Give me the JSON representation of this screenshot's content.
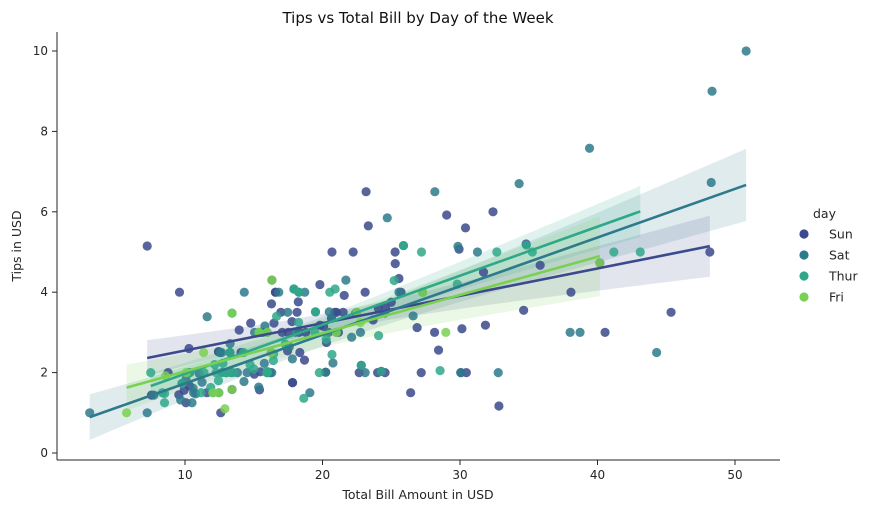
{
  "chart_data": {
    "type": "scatter",
    "title": "Tips vs Total Bill by Day of the Week",
    "xlabel": "Total Bill Amount in USD",
    "ylabel": "Tips in USD",
    "xlim": [
      2,
      53
    ],
    "ylim": [
      -0.2,
      10.5
    ],
    "xticks": [
      10,
      20,
      30,
      40,
      50
    ],
    "yticks": [
      0,
      2,
      4,
      6,
      8,
      10
    ],
    "grid": false,
    "legend": {
      "title": "day",
      "placement": "right"
    },
    "series": [
      {
        "name": "Sun",
        "color": "#3b4a8c",
        "points": [
          [
            7.25,
            5.15
          ],
          [
            8.77,
            2.0
          ],
          [
            9.6,
            4.0
          ],
          [
            10.29,
            2.6
          ],
          [
            10.33,
            1.67
          ],
          [
            14.07,
            2.5
          ],
          [
            14.78,
            3.23
          ],
          [
            15.04,
            1.96
          ],
          [
            15.42,
            1.57
          ],
          [
            16.29,
            3.71
          ],
          [
            16.97,
            3.5
          ],
          [
            17.46,
            2.54
          ],
          [
            17.51,
            3.0
          ],
          [
            17.82,
            1.75
          ],
          [
            18.24,
            3.76
          ],
          [
            18.29,
            3.0
          ],
          [
            18.35,
            2.5
          ],
          [
            19.82,
            3.18
          ],
          [
            20.29,
            2.75
          ],
          [
            20.65,
            3.35
          ],
          [
            20.69,
            5.0
          ],
          [
            21.01,
            3.5
          ],
          [
            21.5,
            3.5
          ],
          [
            21.58,
            3.92
          ],
          [
            22.23,
            5.0
          ],
          [
            22.82,
            2.18
          ],
          [
            23.33,
            5.65
          ],
          [
            23.68,
            3.31
          ],
          [
            24.06,
            3.6
          ],
          [
            24.27,
            2.03
          ],
          [
            24.55,
            2.0
          ],
          [
            24.59,
            3.61
          ],
          [
            25.0,
            3.75
          ],
          [
            25.29,
            4.71
          ],
          [
            25.71,
            4.0
          ],
          [
            26.41,
            1.5
          ],
          [
            26.88,
            3.12
          ],
          [
            28.15,
            3.0
          ],
          [
            29.93,
            5.07
          ],
          [
            30.06,
            2.0
          ],
          [
            30.4,
            5.6
          ],
          [
            31.71,
            4.5
          ],
          [
            32.4,
            6.0
          ],
          [
            34.63,
            3.55
          ],
          [
            34.81,
            5.2
          ],
          [
            38.07,
            4.0
          ],
          [
            40.55,
            3.0
          ],
          [
            45.35,
            3.5
          ],
          [
            48.17,
            5.0
          ],
          [
            9.94,
            1.56
          ],
          [
            13.94,
            3.06
          ],
          [
            12.43,
            2.52
          ],
          [
            16.47,
            3.23
          ],
          [
            17.78,
            3.27
          ],
          [
            20.08,
            3.15
          ],
          [
            16.58,
            4.0
          ],
          [
            17.07,
            3.0
          ],
          [
            13.27,
            2.5
          ],
          [
            16.32,
            4.3
          ],
          [
            23.17,
            6.5
          ],
          [
            20.23,
            2.01
          ],
          [
            16.21,
            2.0
          ],
          [
            19.81,
            4.19
          ],
          [
            28.44,
            2.56
          ],
          [
            15.48,
            2.02
          ],
          [
            16.58,
            4.0
          ],
          [
            7.56,
            1.44
          ],
          [
            10.34,
            2.0
          ],
          [
            25.56,
            4.34
          ],
          [
            35.83,
            4.67
          ],
          [
            29.03,
            5.92
          ],
          [
            27.18,
            2.0
          ],
          [
            22.67,
            2.0
          ],
          [
            17.82,
            1.75
          ],
          [
            18.78,
            3.0
          ],
          [
            13.42,
            1.58
          ],
          [
            16.27,
            2.5
          ],
          [
            10.07,
            1.25
          ],
          [
            12.6,
            1.0
          ],
          [
            32.83,
            1.17
          ],
          [
            30.46,
            2.0
          ],
          [
            18.15,
            3.5
          ],
          [
            23.1,
            4.0
          ],
          [
            11.59,
            1.5
          ],
          [
            12.48,
            2.52
          ],
          [
            21.16,
            3.0
          ],
          [
            20.9,
            3.5
          ],
          [
            30.14,
            3.09
          ],
          [
            31.85,
            3.18
          ],
          [
            18.69,
            2.31
          ],
          [
            9.55,
            1.45
          ],
          [
            16.0,
            2.0
          ],
          [
            25.28,
            5.0
          ],
          [
            15.53,
            3.0
          ],
          [
            13.0,
            2.0
          ],
          [
            22.42,
            3.48
          ],
          [
            24.01,
            2.0
          ],
          [
            40.17,
            4.73
          ]
        ]
      },
      {
        "name": "Sat",
        "color": "#2e7a8c",
        "points": [
          [
            3.07,
            1.0
          ],
          [
            7.25,
            1.0
          ],
          [
            7.74,
            1.44
          ],
          [
            9.78,
            1.73
          ],
          [
            10.07,
            1.83
          ],
          [
            10.63,
            1.5
          ],
          [
            11.24,
            1.76
          ],
          [
            11.61,
            3.39
          ],
          [
            12.46,
            1.5
          ],
          [
            12.54,
            2.5
          ],
          [
            12.66,
            2.5
          ],
          [
            13.28,
            2.72
          ],
          [
            13.81,
            2.0
          ],
          [
            14.29,
            1.78
          ],
          [
            14.31,
            4.0
          ],
          [
            14.52,
            2.0
          ],
          [
            15.36,
            1.64
          ],
          [
            15.69,
            3.0
          ],
          [
            15.98,
            3.0
          ],
          [
            16.31,
            2.0
          ],
          [
            16.82,
            4.0
          ],
          [
            17.47,
            3.5
          ],
          [
            17.81,
            2.34
          ],
          [
            17.92,
            4.08
          ],
          [
            18.04,
            3.0
          ],
          [
            18.28,
            4.0
          ],
          [
            18.71,
            4.0
          ],
          [
            19.08,
            1.5
          ],
          [
            19.49,
            3.51
          ],
          [
            20.23,
            2.01
          ],
          [
            20.49,
            3.51
          ],
          [
            20.76,
            2.24
          ],
          [
            21.7,
            4.3
          ],
          [
            22.12,
            2.88
          ],
          [
            22.76,
            3.0
          ],
          [
            23.1,
            2.0
          ],
          [
            24.71,
            5.85
          ],
          [
            25.89,
            5.16
          ],
          [
            26.59,
            3.41
          ],
          [
            28.17,
            6.5
          ],
          [
            29.85,
            5.14
          ],
          [
            30.06,
            2.0
          ],
          [
            31.27,
            5.0
          ],
          [
            32.78,
            2.0
          ],
          [
            34.3,
            6.7
          ],
          [
            38.01,
            3.0
          ],
          [
            38.73,
            3.0
          ],
          [
            39.42,
            7.58
          ],
          [
            44.3,
            2.5
          ],
          [
            48.27,
            6.73
          ],
          [
            48.33,
            9.0
          ],
          [
            50.81,
            10.0
          ],
          [
            9.68,
            1.32
          ],
          [
            10.59,
            1.61
          ],
          [
            13.37,
            2.0
          ],
          [
            15.81,
            3.16
          ],
          [
            17.59,
            2.64
          ],
          [
            20.45,
            3.0
          ],
          [
            21.01,
            3.0
          ],
          [
            24.52,
            3.48
          ],
          [
            25.56,
            4.0
          ],
          [
            27.28,
            4.0
          ],
          [
            11.02,
            1.98
          ],
          [
            12.74,
            2.01
          ],
          [
            15.06,
            3.0
          ],
          [
            20.65,
            3.35
          ],
          [
            22.49,
            3.5
          ],
          [
            10.51,
            1.25
          ],
          [
            15.77,
            2.23
          ],
          [
            10.77,
            1.47
          ]
        ]
      },
      {
        "name": "Thur",
        "color": "#2fa88a",
        "points": [
          [
            7.51,
            2.0
          ],
          [
            8.35,
            1.5
          ],
          [
            8.51,
            1.25
          ],
          [
            10.34,
            2.0
          ],
          [
            11.38,
            2.0
          ],
          [
            11.87,
            1.63
          ],
          [
            12.03,
            1.5
          ],
          [
            12.16,
            2.2
          ],
          [
            12.43,
            1.8
          ],
          [
            12.69,
            2.0
          ],
          [
            13.0,
            2.0
          ],
          [
            13.42,
            3.48
          ],
          [
            14.26,
            2.5
          ],
          [
            14.73,
            2.2
          ],
          [
            15.01,
            2.09
          ],
          [
            15.95,
            2.0
          ],
          [
            16.0,
            2.0
          ],
          [
            16.45,
            2.47
          ],
          [
            16.66,
            3.4
          ],
          [
            17.29,
            2.71
          ],
          [
            18.26,
            3.25
          ],
          [
            18.64,
            1.36
          ],
          [
            19.44,
            3.0
          ],
          [
            19.77,
            2.0
          ],
          [
            20.27,
            2.83
          ],
          [
            20.53,
            4.0
          ],
          [
            20.92,
            4.08
          ],
          [
            24.08,
            2.92
          ],
          [
            25.21,
            4.29
          ],
          [
            27.2,
            5.0
          ],
          [
            28.55,
            2.05
          ],
          [
            29.8,
            4.2
          ],
          [
            32.68,
            5.0
          ],
          [
            34.83,
            5.17
          ],
          [
            41.19,
            5.0
          ],
          [
            43.11,
            5.0
          ],
          [
            15.98,
            2.03
          ],
          [
            18.28,
            4.0
          ],
          [
            8.52,
            1.48
          ],
          [
            13.03,
            2.0
          ],
          [
            13.51,
            2.0
          ],
          [
            16.43,
            2.3
          ],
          [
            15.38,
            3.0
          ],
          [
            24.27,
            2.03
          ],
          [
            11.17,
            1.5
          ],
          [
            12.26,
            2.0
          ],
          [
            12.76,
            2.23
          ],
          [
            10.33,
            2.0
          ],
          [
            9.78,
            1.73
          ],
          [
            19.49,
            3.51
          ],
          [
            25.89,
            5.16
          ],
          [
            17.92,
            4.08
          ],
          [
            13.27,
            2.5
          ],
          [
            20.69,
            2.45
          ],
          [
            35.26,
            5.0
          ],
          [
            22.82,
            2.18
          ]
        ]
      },
      {
        "name": "Fri",
        "color": "#7ad151",
        "points": [
          [
            5.75,
            1.0
          ],
          [
            8.58,
            1.92
          ],
          [
            10.09,
            2.0
          ],
          [
            11.35,
            2.5
          ],
          [
            12.03,
            1.5
          ],
          [
            12.46,
            1.5
          ],
          [
            12.9,
            1.1
          ],
          [
            13.42,
            3.48
          ],
          [
            13.42,
            1.58
          ],
          [
            15.38,
            3.0
          ],
          [
            15.98,
            3.0
          ],
          [
            16.27,
            2.5
          ],
          [
            16.32,
            4.3
          ],
          [
            21.01,
            3.0
          ],
          [
            22.49,
            3.5
          ],
          [
            22.75,
            3.25
          ],
          [
            27.28,
            4.0
          ],
          [
            28.97,
            3.0
          ],
          [
            40.17,
            4.73
          ]
        ]
      }
    ],
    "regression": [
      {
        "name": "Sun",
        "x_range": [
          7.25,
          48.17
        ],
        "intercept": 1.87,
        "slope": 0.068
      },
      {
        "name": "Sat",
        "x_range": [
          3.07,
          50.81
        ],
        "intercept": 0.52,
        "slope": 0.121
      },
      {
        "name": "Thur",
        "x_range": [
          7.51,
          43.11
        ],
        "intercept": 0.75,
        "slope": 0.122
      },
      {
        "name": "Fri",
        "x_range": [
          5.75,
          40.17
        ],
        "intercept": 1.08,
        "slope": 0.095
      }
    ]
  }
}
